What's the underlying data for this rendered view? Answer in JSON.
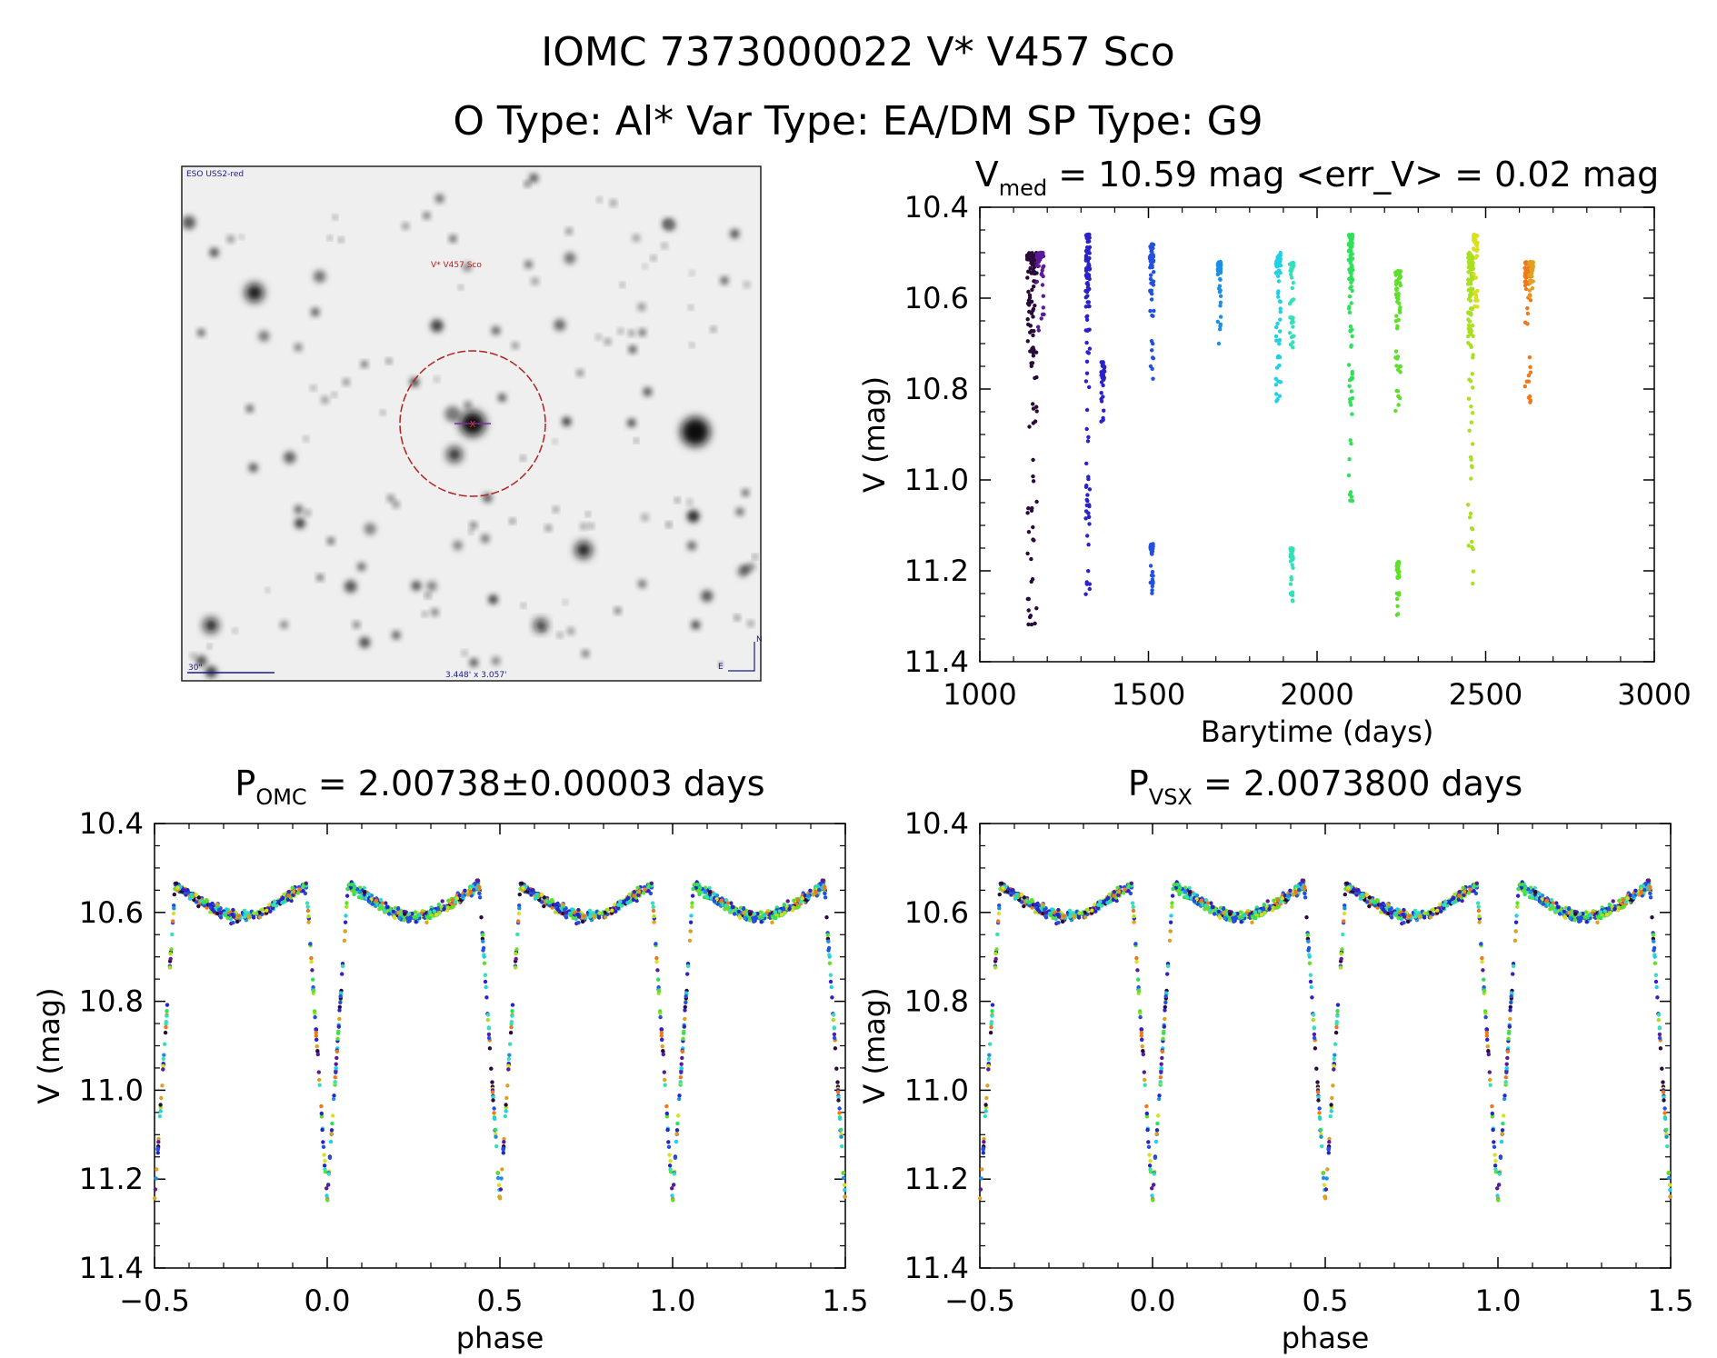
{
  "header": {
    "title_line1": "IOMC 7373000022    V* V457 Sco",
    "title_line2": "O Type: Al*  Var Type: EA/DM  SP Type: G9"
  },
  "sky_image": {
    "survey_label": "ESO USS2-red",
    "target_label": "V* V457 Sco",
    "scale_label": "30\"",
    "size_label": "3.448' x 3.057'",
    "north_label": "N",
    "east_label": "E",
    "circle_color": "#b22222"
  },
  "chart_data": [
    {
      "id": "lightcurve",
      "type": "scatter",
      "title_main": "V",
      "title_sub": "med",
      "title_rest": " = 10.59 mag <err_V> = 0.02 mag",
      "xlabel": "Barytime (days)",
      "ylabel": "V (mag)",
      "xlim": [
        1000,
        3000
      ],
      "ylim": [
        11.4,
        10.4
      ],
      "x_ticks": [
        "1000",
        "1500",
        "2000",
        "2500",
        "3000"
      ],
      "y_ticks": [
        "10.4",
        "10.6",
        "10.8",
        "11.0",
        "11.2",
        "11.4"
      ],
      "epochs": [
        {
          "x": 1155,
          "width": 30,
          "min": 10.5,
          "max": 11.35,
          "color": "#2a0a3a"
        },
        {
          "x": 1180,
          "width": 22,
          "min": 10.5,
          "max": 10.68,
          "color": "#5a1a9a"
        },
        {
          "x": 1320,
          "width": 12,
          "min": 10.46,
          "max": 11.26,
          "color": "#2b22c8"
        },
        {
          "x": 1365,
          "width": 10,
          "min": 10.74,
          "max": 10.88,
          "color": "#2b22c8"
        },
        {
          "x": 1510,
          "width": 12,
          "min": 10.48,
          "max": 10.79,
          "color": "#2250e0"
        },
        {
          "x": 1510,
          "width": 8,
          "min": 11.14,
          "max": 11.25,
          "color": "#2250e0"
        },
        {
          "x": 1710,
          "width": 10,
          "min": 10.52,
          "max": 10.7,
          "color": "#1c8ee8"
        },
        {
          "x": 1885,
          "width": 14,
          "min": 10.5,
          "max": 10.83,
          "color": "#1ed0e8"
        },
        {
          "x": 1925,
          "width": 12,
          "min": 10.52,
          "max": 10.71,
          "color": "#35e0b8"
        },
        {
          "x": 1925,
          "width": 8,
          "min": 11.15,
          "max": 11.27,
          "color": "#35e0b8"
        },
        {
          "x": 2100,
          "width": 12,
          "min": 10.46,
          "max": 11.08,
          "color": "#2ee05a"
        },
        {
          "x": 2240,
          "width": 16,
          "min": 10.54,
          "max": 10.86,
          "color": "#5ce02a"
        },
        {
          "x": 2240,
          "width": 8,
          "min": 11.18,
          "max": 11.3,
          "color": "#5ce02a"
        },
        {
          "x": 2455,
          "width": 16,
          "min": 10.5,
          "max": 11.25,
          "color": "#a8e020"
        },
        {
          "x": 2470,
          "width": 12,
          "min": 10.46,
          "max": 10.62,
          "color": "#d8e020"
        },
        {
          "x": 2625,
          "width": 18,
          "min": 10.52,
          "max": 10.85,
          "color": "#f07818"
        },
        {
          "x": 2635,
          "width": 12,
          "min": 10.52,
          "max": 10.6,
          "color": "#e0a020"
        }
      ]
    },
    {
      "id": "phase_omc",
      "type": "scatter",
      "title_main": "P",
      "title_sub": "OMC",
      "title_rest": " = 2.00738±0.00003 days",
      "period_days": 2.00738,
      "xlabel": "phase",
      "ylabel": "V (mag)",
      "xlim": [
        -0.5,
        1.5
      ],
      "ylim": [
        11.4,
        10.4
      ],
      "x_ticks": [
        "−0.5",
        "0.0",
        "0.5",
        "1.0",
        "1.5"
      ],
      "y_ticks": [
        "10.4",
        "10.6",
        "10.8",
        "11.0",
        "11.2",
        "11.4"
      ],
      "model": {
        "primary_depth": 0.72,
        "primary_width": 0.06,
        "secondary_phase": 0.5,
        "secondary_depth": 0.72,
        "secondary_width": 0.06,
        "max_mag": 10.53,
        "curve_amp": 0.08
      }
    },
    {
      "id": "phase_vsx",
      "type": "scatter",
      "title_main": "P",
      "title_sub": "VSX",
      "title_rest": " = 2.0073800 days",
      "period_days": 2.00738,
      "xlabel": "phase",
      "ylabel": "V (mag)",
      "xlim": [
        -0.5,
        1.5
      ],
      "ylim": [
        11.4,
        10.4
      ],
      "x_ticks": [
        "−0.5",
        "0.0",
        "0.5",
        "1.0",
        "1.5"
      ],
      "y_ticks": [
        "10.4",
        "10.6",
        "10.8",
        "11.0",
        "11.2",
        "11.4"
      ],
      "model": {
        "primary_depth": 0.72,
        "primary_width": 0.06,
        "secondary_phase": 0.5,
        "secondary_depth": 0.72,
        "secondary_width": 0.06,
        "max_mag": 10.53,
        "curve_amp": 0.08
      }
    }
  ]
}
